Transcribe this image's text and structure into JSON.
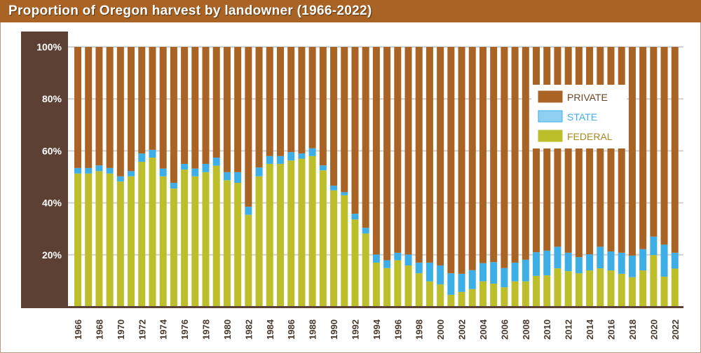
{
  "title": "Proportion of Oregon harvest by landowner (1966-2022)",
  "chart_data": {
    "type": "bar",
    "stacked": true,
    "title": "Proportion of Oregon harvest by landowner (1966-2022)",
    "xlabel": "",
    "ylabel": "",
    "ylim": [
      0,
      100
    ],
    "y_ticks": [
      "20%",
      "40%",
      "60%",
      "80%",
      "100%"
    ],
    "y_tick_values": [
      20,
      40,
      60,
      80,
      100
    ],
    "grid": true,
    "legend_position": "top-right",
    "categories": [
      1966,
      1967,
      1968,
      1969,
      1970,
      1971,
      1972,
      1973,
      1974,
      1975,
      1976,
      1977,
      1978,
      1979,
      1980,
      1981,
      1982,
      1983,
      1984,
      1985,
      1986,
      1987,
      1988,
      1989,
      1990,
      1991,
      1992,
      1993,
      1994,
      1995,
      1996,
      1997,
      1998,
      1999,
      2000,
      2001,
      2002,
      2003,
      2004,
      2005,
      2006,
      2007,
      2008,
      2009,
      2010,
      2011,
      2012,
      2013,
      2014,
      2015,
      2016,
      2017,
      2018,
      2019,
      2020,
      2021,
      2022
    ],
    "x_tick_labels": [
      "1966",
      "1968",
      "1970",
      "1972",
      "1974",
      "1976",
      "1978",
      "1980",
      "1982",
      "1984",
      "1986",
      "1988",
      "1990",
      "1992",
      "1994",
      "1996",
      "1998",
      "2000",
      "2002",
      "2004",
      "2006",
      "2008",
      "2010",
      "2012",
      "2014",
      "2016",
      "2018",
      "2020",
      "2022"
    ],
    "series": [
      {
        "name": "FEDERAL",
        "color": "#bcbe2a",
        "values": [
          51.3,
          51.3,
          52.2,
          51.3,
          48.2,
          50.2,
          55.8,
          57.4,
          50.2,
          45.5,
          52.8,
          50.2,
          51.8,
          54.3,
          48.7,
          47.7,
          35.4,
          50.2,
          55.0,
          55.0,
          56.3,
          57.0,
          58.0,
          52.5,
          44.8,
          42.9,
          33.6,
          28.2,
          17.0,
          14.9,
          17.9,
          15.9,
          12.9,
          9.8,
          8.6,
          4.6,
          5.7,
          6.8,
          9.8,
          8.9,
          7.5,
          9.8,
          9.8,
          11.9,
          12.1,
          14.8,
          13.7,
          12.9,
          14.0,
          14.8,
          14.0,
          12.7,
          11.4,
          14.0,
          19.9,
          11.6,
          14.7
        ]
      },
      {
        "name": "STATE",
        "color": "#3daee6",
        "values": [
          2.1,
          2.1,
          2.2,
          2.1,
          2.0,
          2.0,
          3.2,
          3.0,
          3.0,
          2.2,
          2.2,
          3.0,
          3.2,
          3.1,
          3.1,
          4.1,
          3.1,
          3.4,
          3.0,
          3.0,
          3.2,
          2.0,
          3.0,
          1.9,
          1.8,
          1.2,
          2.2,
          2.2,
          3.1,
          3.0,
          2.9,
          4.2,
          4.1,
          7.2,
          7.3,
          8.3,
          7.0,
          7.3,
          7.0,
          8.3,
          7.4,
          7.2,
          8.3,
          9.1,
          9.5,
          8.3,
          7.1,
          6.2,
          6.2,
          8.3,
          7.3,
          8.1,
          8.3,
          8.2,
          7.1,
          12.3,
          6.1
        ]
      },
      {
        "name": "PRIVATE",
        "color": "#a86325",
        "values": [
          46.6,
          46.6,
          45.6,
          46.6,
          49.8,
          47.8,
          41.0,
          39.6,
          46.8,
          52.3,
          45.0,
          46.8,
          45.0,
          42.6,
          48.2,
          48.2,
          61.5,
          46.4,
          42.0,
          42.0,
          40.5,
          41.0,
          39.0,
          45.6,
          53.4,
          55.9,
          64.2,
          69.6,
          79.9,
          82.1,
          79.2,
          79.9,
          83.0,
          83.0,
          84.1,
          87.1,
          87.3,
          85.9,
          83.2,
          82.8,
          85.1,
          83.0,
          81.9,
          79.0,
          78.4,
          76.9,
          79.2,
          80.9,
          79.8,
          76.9,
          78.7,
          79.2,
          80.3,
          77.8,
          73.0,
          76.1,
          79.2
        ]
      }
    ]
  },
  "legend": [
    {
      "label": "PRIVATE",
      "color": "#a86325",
      "text_color": "#6b4426"
    },
    {
      "label": "STATE",
      "color": "#8fd0f2",
      "border": "#3daee6",
      "text_color": "#3daee6"
    },
    {
      "label": "FEDERAL",
      "color": "#bcbe2a",
      "text_color": "#a88a20"
    }
  ],
  "colors": {
    "title_bar": "#a86325",
    "axis_panel": "#5c4033",
    "grid": "#d0d0d4"
  }
}
